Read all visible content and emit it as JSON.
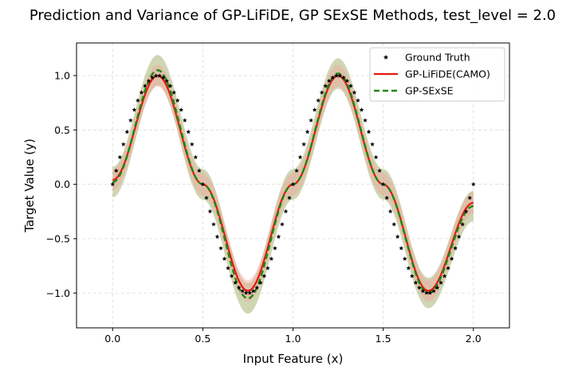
{
  "chart_data": {
    "type": "line",
    "title": "Prediction and Variance of GP-LiFiDE, GP SExSE Methods, test_level = 2.0",
    "xlabel": "Input Feature (x)",
    "ylabel": "Target Value (y)",
    "xlim": [
      -0.2,
      2.2
    ],
    "ylim": [
      -1.32,
      1.3
    ],
    "xticks": [
      0.0,
      0.5,
      1.0,
      1.5,
      2.0
    ],
    "xtick_labels": [
      "0.0",
      "0.5",
      "1.0",
      "1.5",
      "2.0"
    ],
    "yticks": [
      -1.0,
      -0.5,
      0.0,
      0.5,
      1.0
    ],
    "ytick_labels": [
      "−1.0",
      "−0.5",
      "0.0",
      "0.5",
      "1.0"
    ],
    "grid": true,
    "legend_position": "top-right",
    "x_range": [
      0.0,
      2.0
    ],
    "ground_truth": {
      "x_points": [
        0.0,
        0.02,
        0.04,
        0.06,
        0.08,
        0.1,
        0.12,
        0.14,
        0.16,
        0.18,
        0.2,
        0.22,
        0.24,
        0.26,
        0.28,
        0.3,
        0.32,
        0.34,
        0.36,
        0.38,
        0.4,
        0.42,
        0.44,
        0.46,
        0.48,
        0.5,
        0.52,
        0.54,
        0.56,
        0.58,
        0.6,
        0.62,
        0.64,
        0.66,
        0.68,
        0.7,
        0.72,
        0.74,
        0.76,
        0.78,
        0.8,
        0.82,
        0.84,
        0.86,
        0.88,
        0.9,
        0.92,
        0.94,
        0.96,
        0.98,
        1.0,
        1.02,
        1.04,
        1.06,
        1.08,
        1.1,
        1.12,
        1.14,
        1.16,
        1.18,
        1.2,
        1.22,
        1.24,
        1.26,
        1.28,
        1.3,
        1.32,
        1.34,
        1.36,
        1.38,
        1.4,
        1.42,
        1.44,
        1.46,
        1.48,
        1.5,
        1.52,
        1.54,
        1.56,
        1.58,
        1.6,
        1.62,
        1.64,
        1.66,
        1.68,
        1.7,
        1.72,
        1.74,
        1.76,
        1.78,
        1.8,
        1.82,
        1.84,
        1.86,
        1.88,
        1.9,
        1.92,
        1.94,
        1.96,
        1.98,
        2.0
      ],
      "y_points": [
        0.0,
        0.125,
        0.249,
        0.368,
        0.482,
        0.588,
        0.685,
        0.771,
        0.844,
        0.905,
        0.951,
        0.982,
        0.998,
        0.998,
        0.982,
        0.951,
        0.905,
        0.844,
        0.771,
        0.685,
        0.588,
        0.482,
        0.368,
        0.249,
        0.125,
        0.0,
        -0.125,
        -0.249,
        -0.368,
        -0.482,
        -0.588,
        -0.685,
        -0.771,
        -0.844,
        -0.905,
        -0.951,
        -0.982,
        -0.998,
        -0.998,
        -0.982,
        -0.951,
        -0.905,
        -0.844,
        -0.771,
        -0.685,
        -0.588,
        -0.482,
        -0.368,
        -0.249,
        -0.125,
        0.0,
        0.125,
        0.249,
        0.368,
        0.482,
        0.588,
        0.685,
        0.771,
        0.844,
        0.905,
        0.951,
        0.982,
        0.998,
        0.998,
        0.982,
        0.951,
        0.905,
        0.844,
        0.771,
        0.685,
        0.588,
        0.482,
        0.368,
        0.249,
        0.125,
        0.0,
        -0.125,
        -0.249,
        -0.368,
        -0.482,
        -0.588,
        -0.685,
        -0.771,
        -0.844,
        -0.905,
        -0.951,
        -0.982,
        -0.998,
        -0.998,
        -0.982,
        -0.951,
        -0.905,
        -0.844,
        -0.771,
        -0.685,
        -0.588,
        -0.482,
        -0.368,
        -0.249,
        -0.125,
        0.0
      ]
    },
    "series": [
      {
        "name": "Ground Truth",
        "style": "black-star-markers",
        "color": "#000000"
      },
      {
        "name": "GP-LiFiDE(CAMO)",
        "style": "solid",
        "color": "#e8160c",
        "band_color": "#f4a3a0",
        "x": [
          0.0,
          0.25,
          0.5,
          0.75,
          1.0,
          1.25,
          1.5,
          1.75,
          2.0
        ],
        "y": [
          0.04,
          1.0,
          0.0,
          -0.98,
          0.0,
          1.0,
          0.0,
          -0.98,
          -0.17
        ],
        "band_halfwidth": 0.1
      },
      {
        "name": "GP-SExSE",
        "style": "dashed",
        "color": "#1a8a12",
        "band_color": "#a8b472",
        "x": [
          0.0,
          0.25,
          0.5,
          0.75,
          1.0,
          1.25,
          1.5,
          1.75,
          2.0
        ],
        "y": [
          0.02,
          1.05,
          0.0,
          -1.05,
          0.0,
          1.02,
          0.0,
          -1.0,
          -0.2
        ],
        "band_halfwidth": 0.14
      }
    ]
  }
}
